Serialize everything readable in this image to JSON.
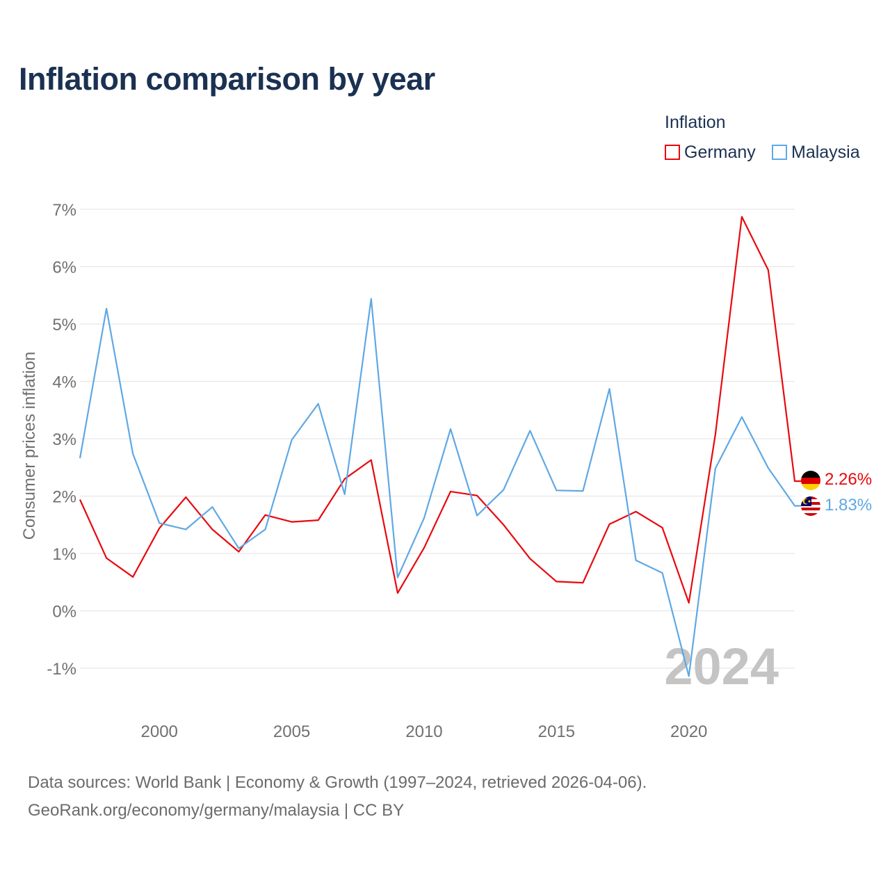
{
  "title": "Inflation comparison by year",
  "legend": {
    "title": "Inflation",
    "items": [
      {
        "label": "Germany",
        "color": "#e8080e"
      },
      {
        "label": "Malaysia",
        "color": "#5fa8e4"
      }
    ]
  },
  "footer": {
    "line1": "Data sources: World Bank | Economy & Growth (1997–2024, retrieved 2026-04-06).",
    "line2": "GeoRank.org/economy/germany/malaysia | CC BY"
  },
  "chart_data": {
    "type": "line",
    "ylabel": "Consumer prices inflation",
    "xlabel": "",
    "year_watermark": "2024",
    "xlim": [
      1997,
      2024
    ],
    "ylim": [
      -1,
      7
    ],
    "x_ticks": [
      2000,
      2005,
      2010,
      2015,
      2020
    ],
    "y_ticks": [
      -1,
      0,
      1,
      2,
      3,
      4,
      5,
      6,
      7
    ],
    "y_tick_labels": [
      "-1%",
      "0%",
      "1%",
      "2%",
      "3%",
      "4%",
      "5%",
      "6%",
      "7%"
    ],
    "grid": true,
    "x": [
      1997,
      1998,
      1999,
      2000,
      2001,
      2002,
      2003,
      2004,
      2005,
      2006,
      2007,
      2008,
      2009,
      2010,
      2011,
      2012,
      2013,
      2014,
      2015,
      2016,
      2017,
      2018,
      2019,
      2020,
      2021,
      2022,
      2023,
      2024
    ],
    "series": [
      {
        "name": "Germany",
        "color": "#e8080e",
        "end_label": "2.26%",
        "values": [
          1.94,
          0.92,
          0.59,
          1.44,
          1.98,
          1.42,
          1.03,
          1.67,
          1.55,
          1.58,
          2.3,
          2.63,
          0.31,
          1.1,
          2.08,
          2.01,
          1.5,
          0.91,
          0.51,
          0.49,
          1.51,
          1.73,
          1.45,
          0.14,
          3.07,
          6.87,
          5.94,
          2.26
        ]
      },
      {
        "name": "Malaysia",
        "color": "#5fa8e4",
        "end_label": "1.83%",
        "values": [
          2.66,
          5.27,
          2.74,
          1.53,
          1.42,
          1.81,
          1.09,
          1.42,
          2.98,
          3.61,
          2.03,
          5.44,
          0.58,
          1.62,
          3.17,
          1.66,
          2.11,
          3.14,
          2.1,
          2.09,
          3.87,
          0.88,
          0.66,
          -1.14,
          2.48,
          3.38,
          2.49,
          1.83
        ]
      }
    ]
  }
}
